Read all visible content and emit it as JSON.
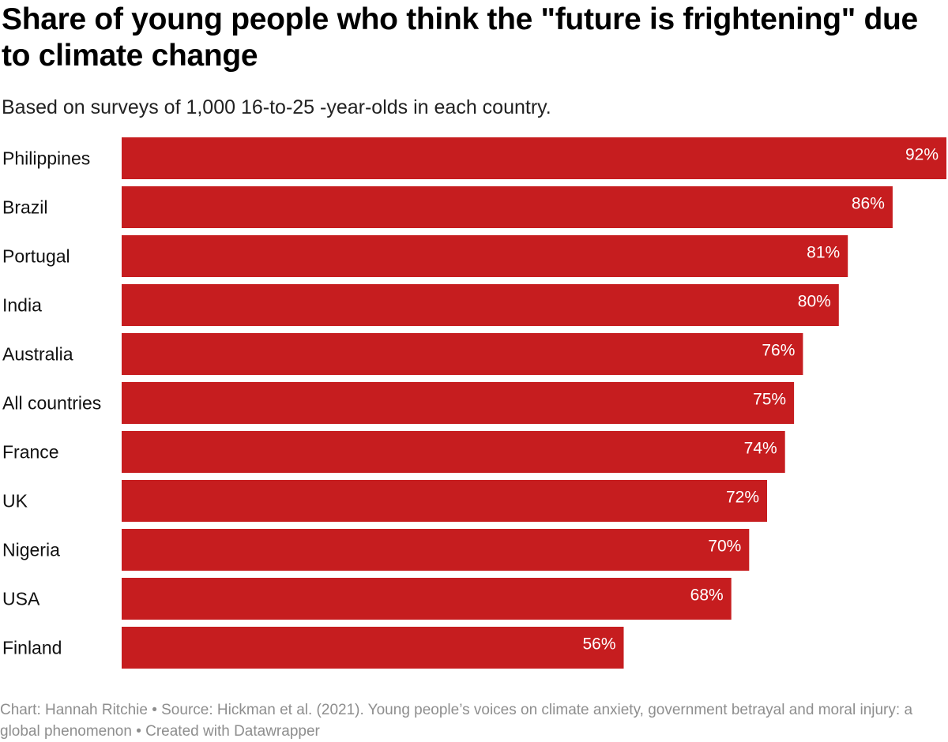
{
  "chart_data": {
    "type": "bar",
    "orientation": "horizontal",
    "title": "Share of young people who think the \"future is frightening\" due to climate change",
    "subtitle": "Based on surveys of 1,000 16-to-25 -year-olds in each country.",
    "categories": [
      "Philippines",
      "Brazil",
      "Portugal",
      "India",
      "Australia",
      "All countries",
      "France",
      "UK",
      "Nigeria",
      "USA",
      "Finland"
    ],
    "values": [
      92,
      86,
      81,
      80,
      76,
      75,
      74,
      72,
      70,
      68,
      56
    ],
    "value_labels": [
      "92%",
      "86%",
      "81%",
      "80%",
      "76%",
      "75%",
      "74%",
      "72%",
      "70%",
      "68%",
      "56%"
    ],
    "xlim": [
      0,
      92
    ],
    "grid": false,
    "bar_color": "#c61d1f",
    "footer": "Chart: Hannah Ritchie • Source: Hickman et al. (2021). Young people’s voices on climate anxiety, government betrayal and moral injury: a global phenomenon • Created with Datawrapper"
  }
}
